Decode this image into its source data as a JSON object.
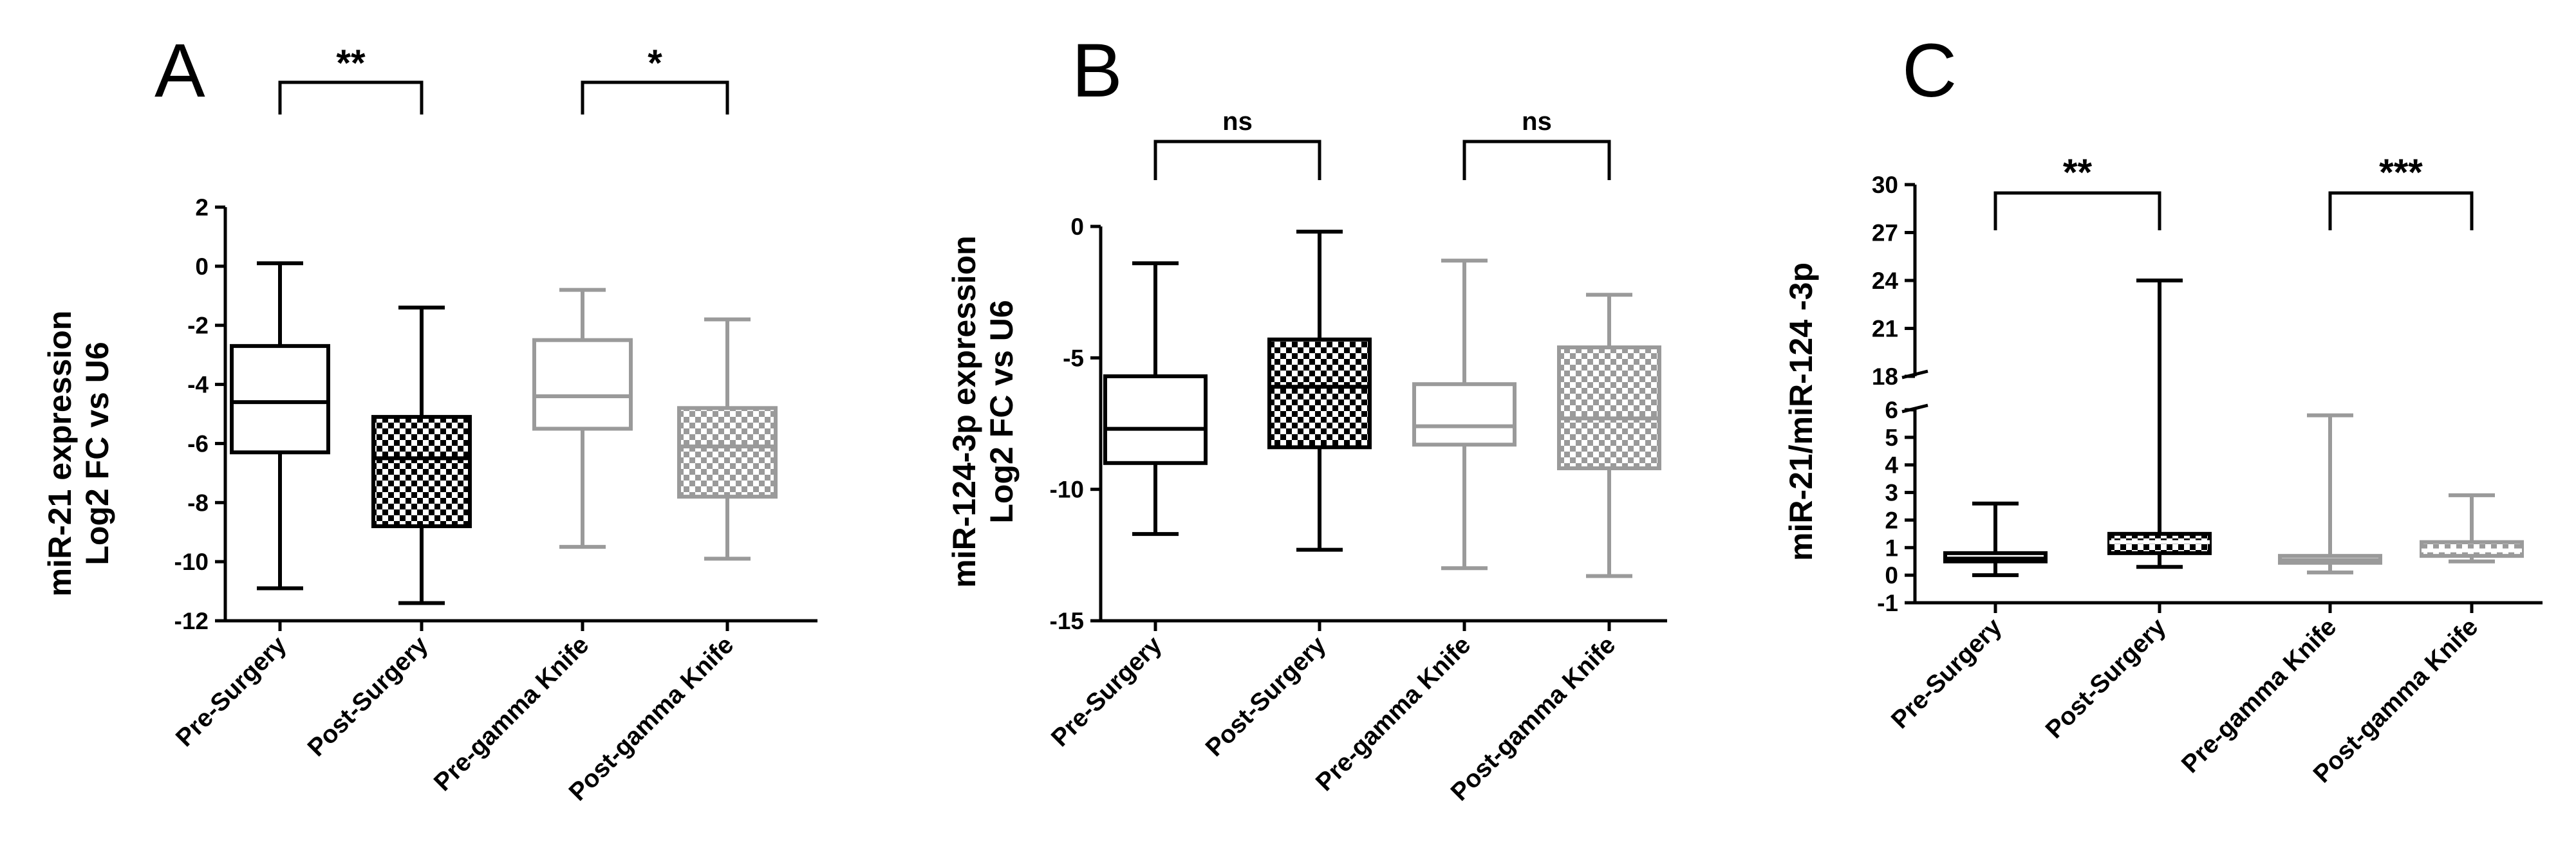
{
  "colors": {
    "black": "#000000",
    "gray": "#9a9a9a"
  },
  "chart_data": [
    {
      "panel": "A",
      "type": "box",
      "ylabel_line1": "miR-21 expression",
      "ylabel_line2": "Log2 FC vs U6",
      "ylim": [
        -12,
        2
      ],
      "yticks": [
        "2",
        "0",
        "-2",
        "-4",
        "-6",
        "-8",
        "-10",
        "-12"
      ],
      "ytick_values": [
        2,
        0,
        -2,
        -4,
        -6,
        -8,
        -10,
        -12
      ],
      "categories": [
        "Pre-Surgery",
        "Post-Surgery",
        "Pre-gamma Knife",
        "Post-gamma Knife"
      ],
      "boxes": [
        {
          "category": "Pre-Surgery",
          "min": -10.9,
          "q1": -6.3,
          "median": -4.6,
          "q3": -2.7,
          "max": 0.1,
          "color": "black",
          "pattern": "none"
        },
        {
          "category": "Post-Surgery",
          "min": -11.4,
          "q1": -8.8,
          "median": -6.5,
          "q3": -5.1,
          "max": -1.4,
          "color": "black",
          "pattern": "checker"
        },
        {
          "category": "Pre-gamma Knife",
          "min": -9.5,
          "q1": -5.5,
          "median": -4.4,
          "q3": -2.5,
          "max": -0.8,
          "color": "gray",
          "pattern": "none"
        },
        {
          "category": "Post-gamma Knife",
          "min": -9.9,
          "q1": -7.8,
          "median": -6.1,
          "q3": -4.8,
          "max": -1.8,
          "color": "gray",
          "pattern": "checker"
        }
      ],
      "significance": [
        {
          "from": 0,
          "to": 1,
          "label": "**"
        },
        {
          "from": 2,
          "to": 3,
          "label": "*"
        }
      ]
    },
    {
      "panel": "B",
      "type": "box",
      "ylabel_line1": "miR-124-3p expression",
      "ylabel_line2": "Log2 FC vs U6",
      "ylim": [
        -15,
        0
      ],
      "yticks": [
        "0",
        "-5",
        "-10",
        "-15"
      ],
      "ytick_values": [
        0,
        -5,
        -10,
        -15
      ],
      "categories": [
        "Pre-Surgery",
        "Post-Surgery",
        "Pre-gamma Knife",
        "Post-gamma Knife"
      ],
      "boxes": [
        {
          "category": "Pre-Surgery",
          "min": -11.7,
          "q1": -9.0,
          "median": -7.7,
          "q3": -5.7,
          "max": -1.4,
          "color": "black",
          "pattern": "none"
        },
        {
          "category": "Post-Surgery",
          "min": -12.3,
          "q1": -8.4,
          "median": -6.1,
          "q3": -4.3,
          "max": -0.2,
          "color": "black",
          "pattern": "checker"
        },
        {
          "category": "Pre-gamma Knife",
          "min": -13.0,
          "q1": -8.3,
          "median": -7.6,
          "q3": -6.0,
          "max": -1.3,
          "color": "gray",
          "pattern": "none"
        },
        {
          "category": "Post-gamma Knife",
          "min": -13.3,
          "q1": -9.2,
          "median": -7.3,
          "q3": -4.6,
          "max": -2.6,
          "color": "gray",
          "pattern": "checker"
        }
      ],
      "significance": [
        {
          "from": 0,
          "to": 1,
          "label": "ns"
        },
        {
          "from": 2,
          "to": 3,
          "label": "ns"
        }
      ]
    },
    {
      "panel": "C",
      "type": "box",
      "ylabel_line1": "miR-21/miR-124 -3p",
      "axis_break": [
        6,
        18
      ],
      "ylim_lower": [
        -1,
        6
      ],
      "ylim_upper": [
        18,
        30
      ],
      "yticks_upper": [
        "30",
        "27",
        "24",
        "21",
        "18"
      ],
      "ytick_values_upper": [
        30,
        27,
        24,
        21,
        18
      ],
      "yticks_lower": [
        "6",
        "5",
        "4",
        "3",
        "2",
        "1",
        "0",
        "-1"
      ],
      "ytick_values_lower": [
        6,
        5,
        4,
        3,
        2,
        1,
        0,
        -1
      ],
      "categories": [
        "Pre-Surgery",
        "Post-Surgery",
        "Pre-gamma Knife",
        "Post-gamma Knife"
      ],
      "boxes": [
        {
          "category": "Pre-Surgery",
          "min": 0.0,
          "q1": 0.5,
          "median": 0.6,
          "q3": 0.8,
          "max": 2.6,
          "color": "black",
          "pattern": "none"
        },
        {
          "category": "Post-Surgery",
          "min": 0.3,
          "q1": 0.8,
          "median": 1.2,
          "q3": 1.5,
          "max": 24.0,
          "color": "black",
          "pattern": "checker"
        },
        {
          "category": "Pre-gamma Knife",
          "min": 0.1,
          "q1": 0.45,
          "median": 0.55,
          "q3": 0.7,
          "max": 5.8,
          "color": "gray",
          "pattern": "none"
        },
        {
          "category": "Post-gamma Knife",
          "min": 0.5,
          "q1": 0.7,
          "median": 0.9,
          "q3": 1.2,
          "max": 2.9,
          "color": "gray",
          "pattern": "checker"
        }
      ],
      "significance": [
        {
          "from": 0,
          "to": 1,
          "label": "**"
        },
        {
          "from": 2,
          "to": 3,
          "label": "***"
        }
      ]
    }
  ]
}
